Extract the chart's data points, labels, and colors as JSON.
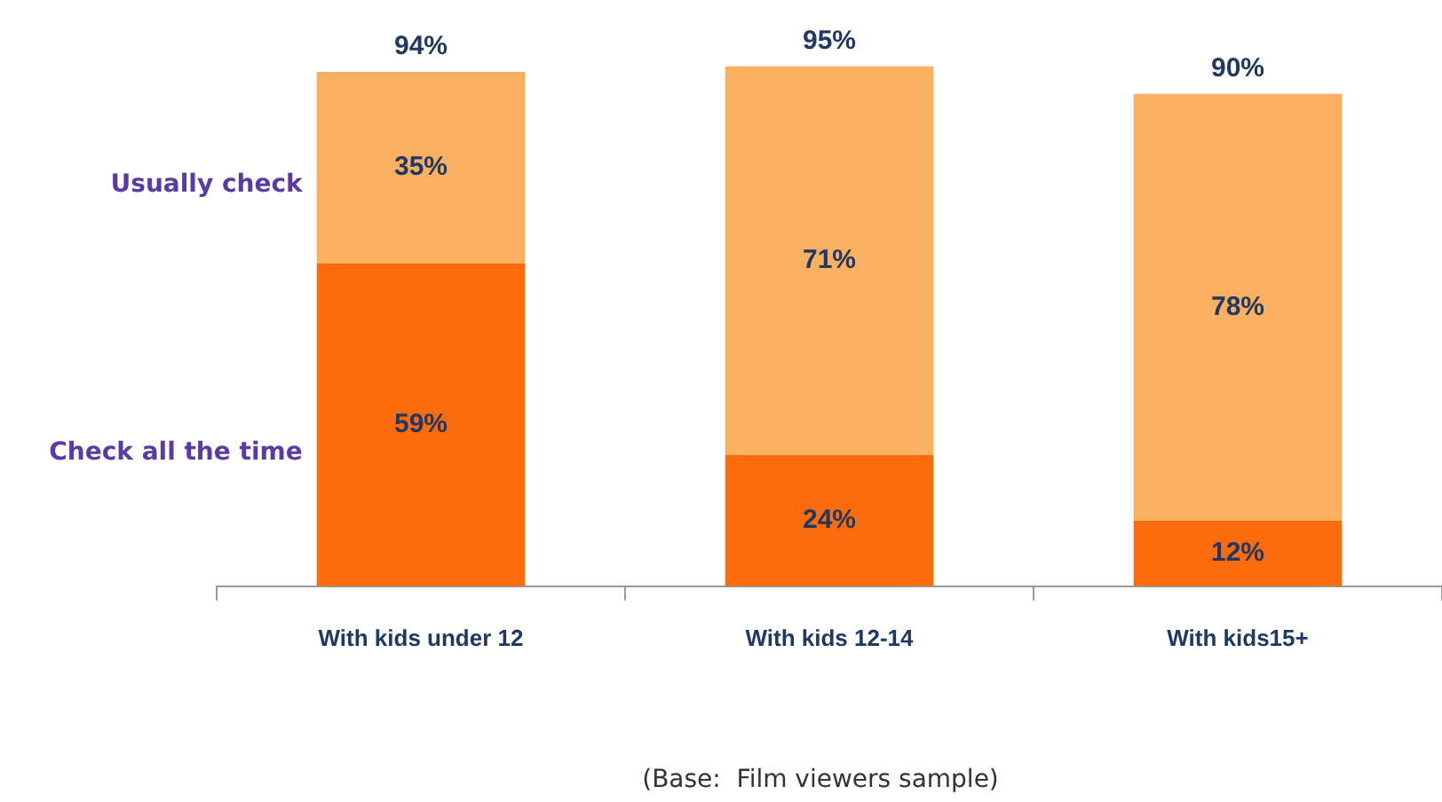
{
  "chart_data": {
    "type": "bar",
    "stacked": true,
    "categories": [
      "With kids under 12",
      "With kids 12-14",
      "With kids15+"
    ],
    "series": [
      {
        "name": "Check all the time",
        "color": "#fc6c0c",
        "values": [
          59,
          24,
          12
        ],
        "value_labels": [
          "59%",
          "24%",
          "12%"
        ]
      },
      {
        "name": "Usually check",
        "color": "#f9b060",
        "values": [
          35,
          71,
          78
        ],
        "value_labels": [
          "35%",
          "71%",
          "78%"
        ]
      }
    ],
    "totals": [
      "94%",
      "95%",
      "90%"
    ],
    "annotations": [
      "(Base:  Film viewers sample)"
    ],
    "grid": false,
    "legend": false
  }
}
